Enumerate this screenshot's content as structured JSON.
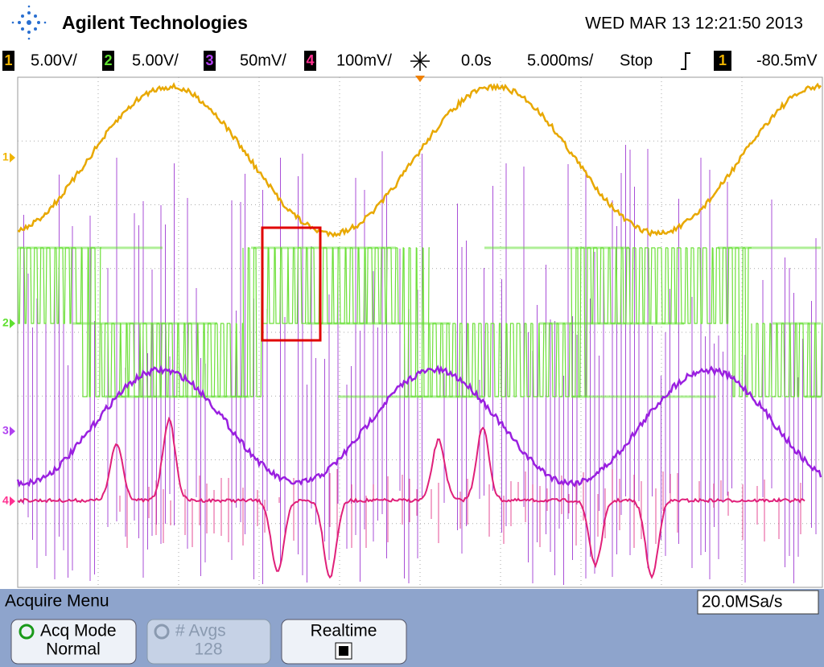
{
  "header": {
    "brand": "Agilent Technologies",
    "datetime": "WED MAR 13 12:21:50 2013"
  },
  "status_bar": {
    "channels": [
      {
        "number": "1",
        "scale": "5.00V/"
      },
      {
        "number": "2",
        "scale": "5.00V/"
      },
      {
        "number": "3",
        "scale": "50mV/"
      },
      {
        "number": "4",
        "scale": "100mV/"
      }
    ],
    "time_offset": "0.0s",
    "timebase": "5.000ms/",
    "run_state": "Stop",
    "trigger_source": "1",
    "trigger_level": "-80.5mV"
  },
  "channel_markers": [
    "1",
    "2",
    "3",
    "4"
  ],
  "menu": {
    "title": "Acquire Menu",
    "sample_rate": "20.0MSa/s",
    "softkeys": [
      {
        "label": "Acq Mode",
        "value": "Normal"
      },
      {
        "label": "# Avgs",
        "value": "128"
      },
      {
        "label": "Realtime"
      }
    ]
  }
}
